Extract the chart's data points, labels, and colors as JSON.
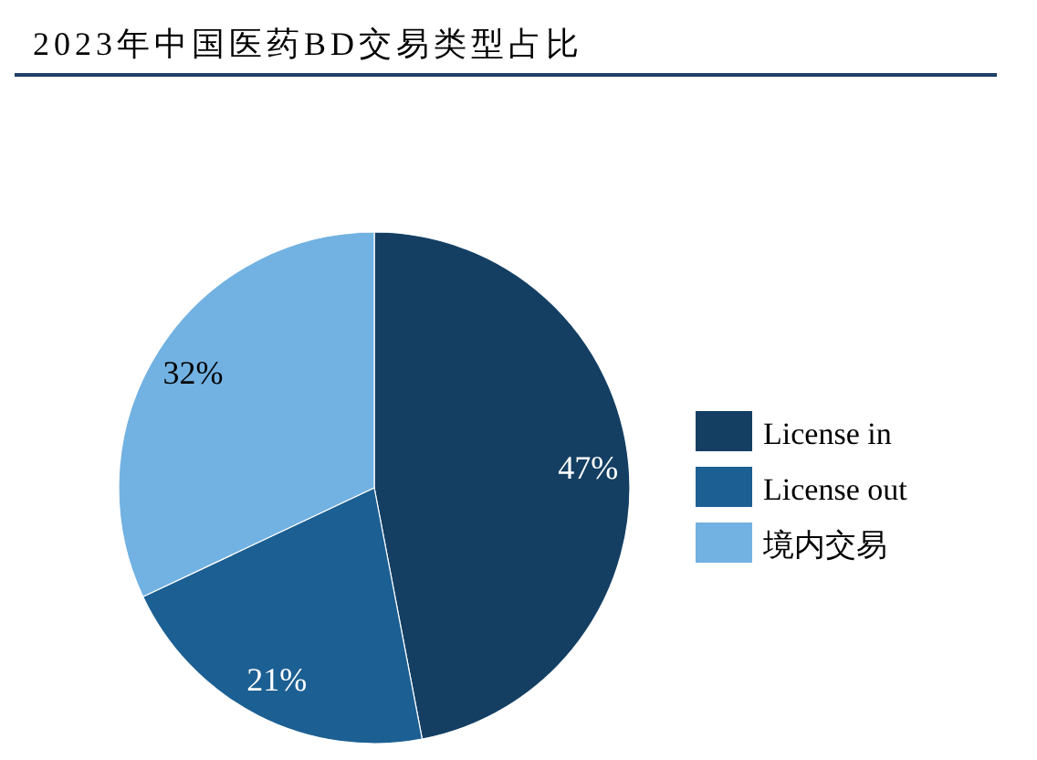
{
  "chart_data": {
    "type": "pie",
    "title": "2023年中国医药BD交易类型占比",
    "categories": [
      "License in",
      "License out",
      "境内交易"
    ],
    "values": [
      47,
      21,
      32
    ],
    "colors": [
      "#143f63",
      "#1c5f93",
      "#72b2e2"
    ],
    "value_labels": [
      "47%",
      "21%",
      "32%"
    ],
    "legend": "right"
  }
}
